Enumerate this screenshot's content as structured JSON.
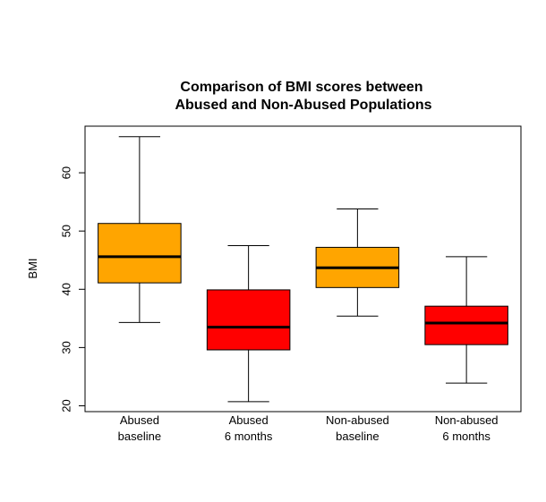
{
  "chart_data": {
    "type": "boxplot",
    "title_lines": [
      "Comparison of BMI scores between",
      "Abused and Non-Abused Populations"
    ],
    "ylabel": "BMI",
    "ylim": [
      19,
      68
    ],
    "yticks": [
      20,
      30,
      40,
      50,
      60
    ],
    "grid": false,
    "categories": [
      [
        "Abused",
        "baseline"
      ],
      [
        "Abused",
        "6 months"
      ],
      [
        "Non-abused",
        "baseline"
      ],
      [
        "Non-abused",
        "6 months"
      ]
    ],
    "boxes": [
      {
        "whisker_low": 34.3,
        "q1": 41.1,
        "median": 45.6,
        "q3": 51.3,
        "whisker_high": 66.2,
        "color": "#FFA500"
      },
      {
        "whisker_low": 20.7,
        "q1": 29.6,
        "median": 33.5,
        "q3": 39.9,
        "whisker_high": 47.5,
        "color": "#FF0000"
      },
      {
        "whisker_low": 35.4,
        "q1": 40.3,
        "median": 43.7,
        "q3": 47.2,
        "whisker_high": 53.8,
        "color": "#FFA500"
      },
      {
        "whisker_low": 23.9,
        "q1": 30.5,
        "median": 34.2,
        "q3": 37.1,
        "whisker_high": 45.6,
        "color": "#FF0000"
      }
    ]
  }
}
